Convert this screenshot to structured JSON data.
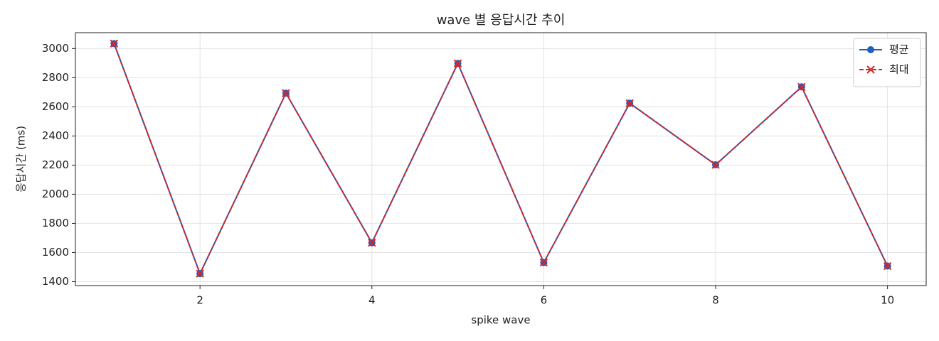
{
  "chart_data": {
    "type": "line",
    "title": "wave 별 응답시간 추이",
    "xlabel": "spike wave",
    "ylabel": "응답시간 (ms)",
    "x": [
      1,
      2,
      3,
      4,
      5,
      6,
      7,
      8,
      9,
      10
    ],
    "series": [
      {
        "name": "평균",
        "color": "#1f5fbf",
        "marker": "o",
        "dash": false,
        "values": [
          3034,
          1455,
          2694,
          1667,
          2898,
          1531,
          2625,
          2202,
          2737,
          1507
        ]
      },
      {
        "name": "최대",
        "color": "#d62728",
        "marker": "x",
        "dash": true,
        "values": [
          3034,
          1455,
          2694,
          1667,
          2898,
          1531,
          2625,
          2202,
          2737,
          1507
        ]
      }
    ],
    "xlim": [
      0.55,
      10.45
    ],
    "ylim": [
      1373,
      3109
    ],
    "xticks": [
      2,
      4,
      6,
      8,
      10
    ],
    "yticks": [
      1400,
      1600,
      1800,
      2000,
      2200,
      2400,
      2600,
      2800,
      3000
    ],
    "grid": true,
    "legend": "upper right"
  }
}
